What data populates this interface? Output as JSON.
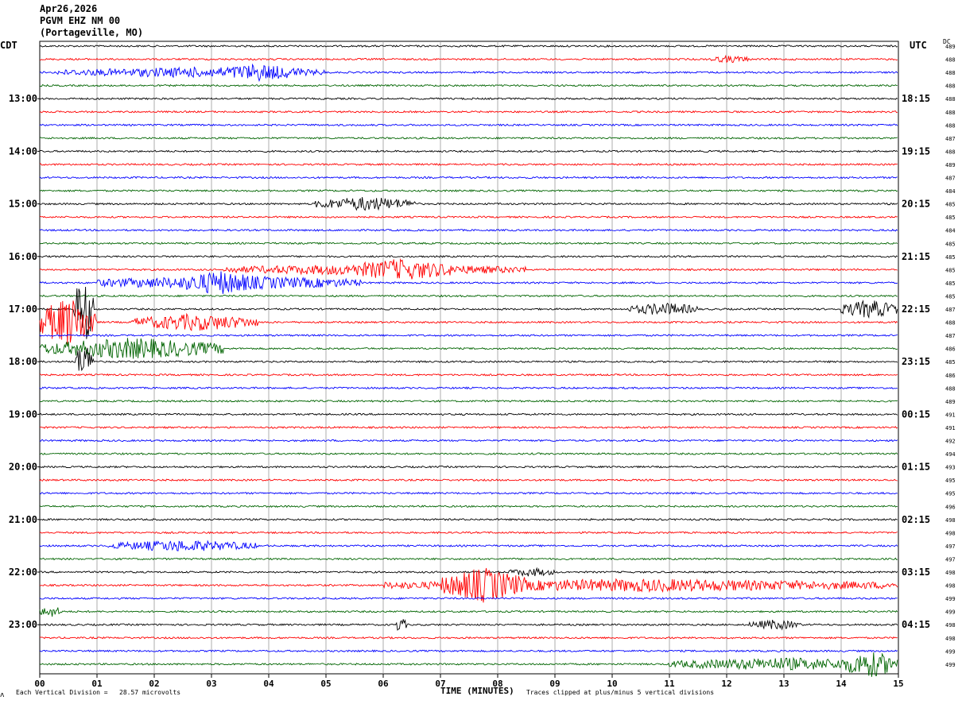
{
  "header": {
    "date": "Apr26,2026",
    "station": "PGVM EHZ NM 00",
    "location": "(Portageville, MO)"
  },
  "left_tz": "CDT",
  "right_tz": "UTC",
  "dc_label": "DC",
  "footer": {
    "scale_note": "Each Vertical Division =   28.57 microvolts",
    "xlabel": "TIME (MINUTES)",
    "clip_note": "Traces clipped at plus/minus 5 vertical divisions",
    "corner_mark": "ʌ"
  },
  "chart_data": {
    "type": "line",
    "title": "PGVM EHZ NM 00",
    "xlabel": "TIME (MINUTES)",
    "xlim": [
      0,
      15
    ],
    "x_ticks": [
      "00",
      "01",
      "02",
      "03",
      "04",
      "05",
      "06",
      "07",
      "08",
      "09",
      "10",
      "11",
      "12",
      "13",
      "14",
      "15"
    ],
    "trace_count": 48,
    "trace_minutes": 15,
    "trace_colors": [
      "#000000",
      "#ff0000",
      "#0000ff",
      "#006400"
    ],
    "left_hour_labels": [
      "13:00",
      "14:00",
      "15:00",
      "16:00",
      "17:00",
      "18:00",
      "19:00",
      "20:00",
      "21:00",
      "22:00",
      "23:00"
    ],
    "right_hour_labels": [
      "18:15",
      "19:15",
      "20:15",
      "21:15",
      "22:15",
      "23:15",
      "00:15",
      "01:15",
      "02:15",
      "03:15",
      "04:15"
    ],
    "dc_offsets": [
      489,
      488,
      488,
      488,
      488,
      488,
      488,
      487,
      488,
      489,
      487,
      484,
      485,
      485,
      484,
      485,
      485,
      485,
      485,
      485,
      487,
      488,
      487,
      486,
      485,
      486,
      488,
      489,
      491,
      491,
      492,
      494,
      493,
      495,
      495,
      496,
      498,
      498,
      497,
      497,
      498,
      498,
      499,
      499,
      498,
      498,
      499,
      499
    ],
    "events": [
      {
        "trace": 1,
        "start_min": 11.7,
        "end_min": 12.4,
        "amp": 0.4
      },
      {
        "trace": 2,
        "start_min": 0.3,
        "end_min": 5.0,
        "amp": 0.6
      },
      {
        "trace": 2,
        "start_min": 3.0,
        "end_min": 4.6,
        "amp": 1.1
      },
      {
        "trace": 12,
        "start_min": 4.8,
        "end_min": 6.6,
        "amp": 0.9
      },
      {
        "trace": 17,
        "start_min": 3.2,
        "end_min": 8.5,
        "amp": 0.7
      },
      {
        "trace": 17,
        "start_min": 5.3,
        "end_min": 7.3,
        "amp": 1.4
      },
      {
        "trace": 18,
        "start_min": 1.0,
        "end_min": 5.6,
        "amp": 0.9
      },
      {
        "trace": 18,
        "start_min": 2.4,
        "end_min": 3.9,
        "amp": 1.6
      },
      {
        "trace": 20,
        "start_min": 0.6,
        "end_min": 0.95,
        "amp": 5.0
      },
      {
        "trace": 20,
        "start_min": 10.3,
        "end_min": 11.5,
        "amp": 0.8
      },
      {
        "trace": 20,
        "start_min": 14.0,
        "end_min": 15.0,
        "amp": 1.2
      },
      {
        "trace": 21,
        "start_min": 0.0,
        "end_min": 1.0,
        "amp": 3.5
      },
      {
        "trace": 21,
        "start_min": 1.6,
        "end_min": 3.8,
        "amp": 1.1
      },
      {
        "trace": 23,
        "start_min": 0.0,
        "end_min": 3.2,
        "amp": 1.4
      },
      {
        "trace": 24,
        "start_min": 0.6,
        "end_min": 0.95,
        "amp": 2.5
      },
      {
        "trace": 38,
        "start_min": 1.2,
        "end_min": 3.8,
        "amp": 0.7
      },
      {
        "trace": 40,
        "start_min": 8.2,
        "end_min": 9.0,
        "amp": 0.5
      },
      {
        "trace": 41,
        "start_min": 6.0,
        "end_min": 15.0,
        "amp": 0.8
      },
      {
        "trace": 41,
        "start_min": 7.0,
        "end_min": 8.5,
        "amp": 2.4
      },
      {
        "trace": 43,
        "start_min": 0.0,
        "end_min": 0.4,
        "amp": 0.7
      },
      {
        "trace": 44,
        "start_min": 6.2,
        "end_min": 6.4,
        "amp": 1.0
      },
      {
        "trace": 44,
        "start_min": 12.4,
        "end_min": 13.3,
        "amp": 0.6
      },
      {
        "trace": 47,
        "start_min": 11.0,
        "end_min": 15.0,
        "amp": 0.8
      },
      {
        "trace": 47,
        "start_min": 14.0,
        "end_min": 15.0,
        "amp": 1.8
      }
    ]
  }
}
